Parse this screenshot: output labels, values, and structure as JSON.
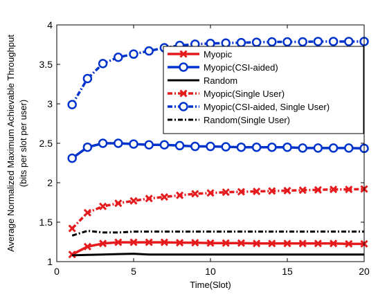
{
  "chart_data": {
    "type": "line",
    "title": "",
    "xlabel": "Time(Slot)",
    "ylabel_lines": [
      "Average Normalized Maximum Achievable Throughput",
      "(bits per slot per user)"
    ],
    "xlim": [
      0,
      20
    ],
    "ylim": [
      1,
      4
    ],
    "x_ticks": [
      0,
      5,
      10,
      15,
      20
    ],
    "y_ticks": [
      1,
      1.5,
      2,
      2.5,
      3,
      3.5,
      4
    ],
    "grid": false,
    "legend_position": "top-right",
    "x": [
      1,
      2,
      3,
      4,
      5,
      6,
      7,
      8,
      9,
      10,
      11,
      12,
      13,
      14,
      15,
      16,
      17,
      18,
      19,
      20
    ],
    "series": [
      {
        "name": "Myopic",
        "color": "#e41a1c",
        "line": "solid",
        "marker": "x",
        "values": [
          1.09,
          1.19,
          1.23,
          1.245,
          1.245,
          1.245,
          1.245,
          1.24,
          1.24,
          1.235,
          1.235,
          1.235,
          1.23,
          1.23,
          1.23,
          1.23,
          1.23,
          1.23,
          1.225,
          1.225
        ]
      },
      {
        "name": "Myopic(CSI-aided)",
        "color": "#0033cc",
        "line": "solid",
        "marker": "o",
        "values": [
          2.31,
          2.45,
          2.5,
          2.5,
          2.49,
          2.48,
          2.48,
          2.47,
          2.46,
          2.46,
          2.455,
          2.45,
          2.45,
          2.45,
          2.45,
          2.44,
          2.44,
          2.44,
          2.44,
          2.435
        ]
      },
      {
        "name": "Random",
        "color": "#000000",
        "line": "solid",
        "marker": "none",
        "values": [
          1.08,
          1.085,
          1.09,
          1.095,
          1.1,
          1.09,
          1.09,
          1.09,
          1.09,
          1.09,
          1.09,
          1.09,
          1.09,
          1.09,
          1.09,
          1.09,
          1.09,
          1.09,
          1.09,
          1.09
        ]
      },
      {
        "name": "Myopic(Single User)",
        "color": "#e41a1c",
        "line": "dashdot",
        "marker": "x",
        "values": [
          1.42,
          1.62,
          1.7,
          1.74,
          1.77,
          1.8,
          1.82,
          1.84,
          1.86,
          1.87,
          1.88,
          1.885,
          1.89,
          1.895,
          1.9,
          1.905,
          1.91,
          1.915,
          1.915,
          1.92
        ]
      },
      {
        "name": "Myopic(CSI-aided, Single User)",
        "color": "#0033cc",
        "line": "dashdot",
        "marker": "o",
        "values": [
          2.99,
          3.32,
          3.51,
          3.59,
          3.63,
          3.67,
          3.71,
          3.74,
          3.755,
          3.765,
          3.77,
          3.775,
          3.78,
          3.785,
          3.785,
          3.785,
          3.79,
          3.79,
          3.79,
          3.79
        ]
      },
      {
        "name": "Random(Single User)",
        "color": "#000000",
        "line": "dashdot",
        "marker": "none",
        "values": [
          1.33,
          1.39,
          1.37,
          1.37,
          1.38,
          1.38,
          1.38,
          1.38,
          1.38,
          1.38,
          1.38,
          1.38,
          1.38,
          1.38,
          1.38,
          1.38,
          1.38,
          1.38,
          1.38,
          1.38
        ]
      }
    ]
  }
}
